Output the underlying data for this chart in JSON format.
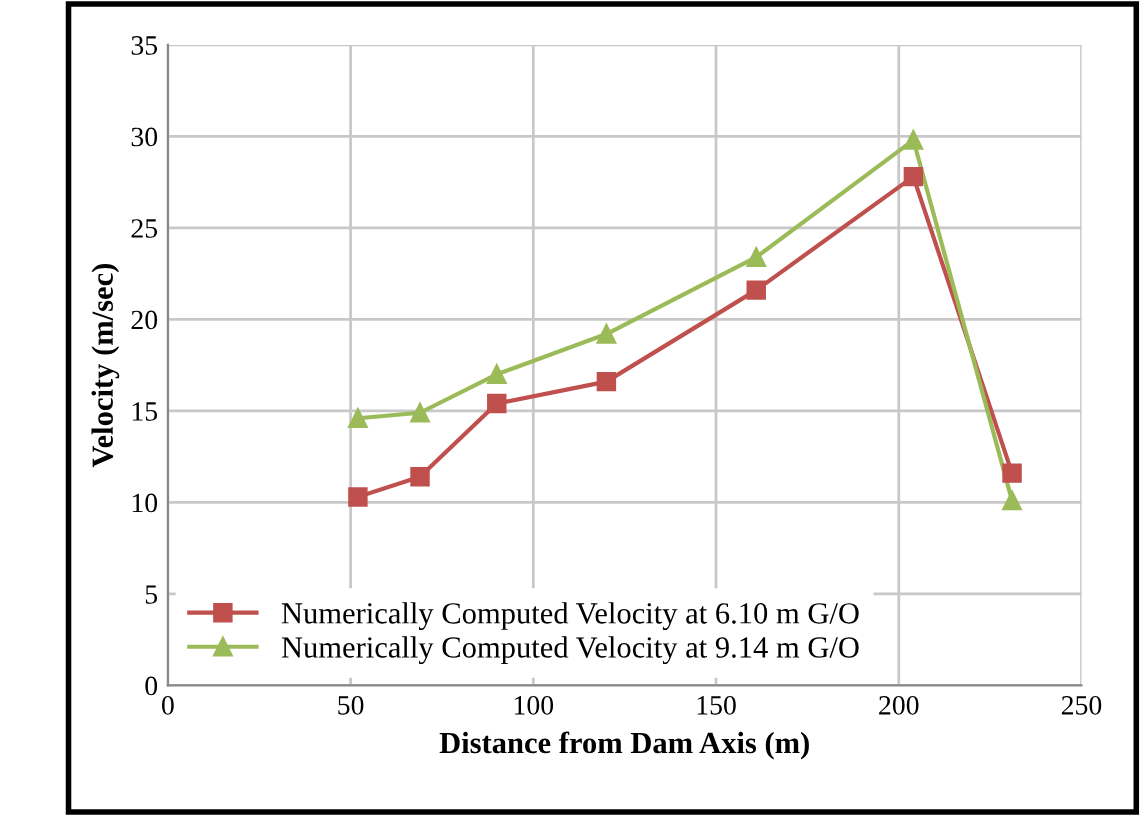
{
  "chart_data": {
    "type": "line",
    "xlabel": "Distance from Dam Axis (m)",
    "ylabel": "Velocity (m/sec)",
    "xlim": [
      0,
      250
    ],
    "xticks": [
      0,
      50,
      100,
      150,
      200,
      250
    ],
    "ylim": [
      0,
      35
    ],
    "yticks": [
      0,
      5,
      10,
      15,
      20,
      25,
      30,
      35
    ],
    "grid": true,
    "legend": "bottom left",
    "line_style": "solid",
    "series": [
      {
        "name": "Numerically Computed Velocity at 6.10 m G/O",
        "color": "#c0504d",
        "marker": "square",
        "x": [
          52,
          69,
          90,
          120,
          161,
          204,
          231
        ],
        "values": [
          10.3,
          11.4,
          15.4,
          16.6,
          21.6,
          27.8,
          11.6
        ]
      },
      {
        "name": "Numerically Computed Velocity at 9.14 m G/O",
        "color": "#9bbb59",
        "marker": "triangle",
        "x": [
          52,
          69,
          90,
          120,
          161,
          204,
          231
        ],
        "values": [
          14.6,
          14.9,
          17.0,
          19.2,
          23.4,
          29.8,
          10.1
        ]
      }
    ]
  }
}
